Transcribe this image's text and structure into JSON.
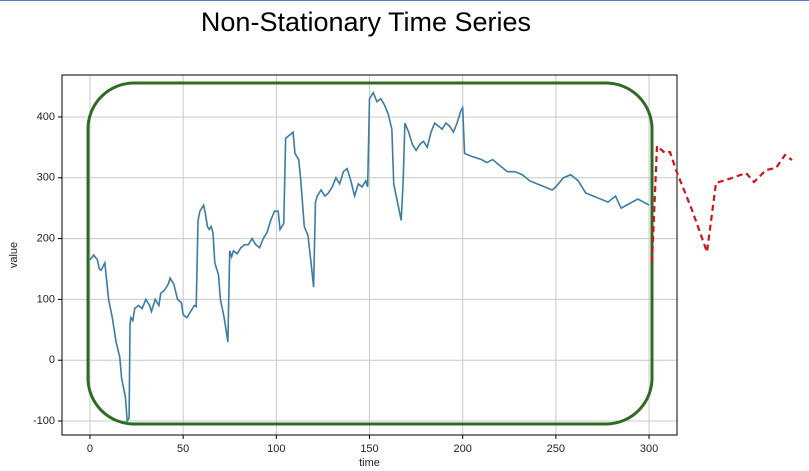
{
  "chart_data": {
    "type": "line",
    "title": "Non-Stationary Time Series",
    "x_label": "time",
    "y_label": "value",
    "xlim": [
      -15,
      315
    ],
    "ylim": [
      -123,
      469
    ],
    "xticks": [
      0,
      50,
      100,
      150,
      200,
      250,
      300
    ],
    "yticks": [
      -100,
      0,
      100,
      200,
      300,
      400
    ],
    "grid": true,
    "x": [
      0,
      2,
      4,
      5,
      6,
      8,
      9,
      10,
      12,
      14,
      16,
      17,
      19,
      20,
      21,
      21.5,
      22,
      23,
      24,
      26,
      28,
      30,
      31,
      32,
      33,
      35,
      37,
      38,
      40,
      42,
      43,
      45,
      47,
      49,
      50,
      52,
      54,
      56,
      57,
      58,
      59,
      60,
      61,
      62,
      63,
      64,
      65,
      66,
      67,
      69,
      70,
      72,
      73,
      74,
      75,
      76,
      77,
      79,
      81,
      83,
      85,
      87,
      89,
      91,
      93,
      95,
      97,
      99,
      101,
      102,
      104,
      105,
      107,
      109,
      110,
      112,
      113,
      115,
      117,
      119,
      120,
      121,
      122,
      124,
      126,
      128,
      130,
      132,
      134,
      136,
      138,
      140,
      142,
      144,
      146,
      148,
      149,
      150,
      152,
      154,
      156,
      158,
      160,
      162,
      163,
      165,
      167,
      168,
      169,
      171,
      173,
      175,
      177,
      179,
      181,
      183,
      185,
      187,
      189,
      191,
      193,
      195,
      197,
      199,
      200,
      201,
      205,
      210,
      213,
      216,
      220,
      224,
      228,
      232,
      236,
      240,
      244,
      248,
      250,
      254,
      258,
      262,
      266,
      270,
      274,
      278,
      282,
      285,
      288,
      291,
      294,
      297,
      300
    ],
    "series": [
      {
        "color": "#3a7ca5",
        "values": [
          165,
          173,
          165,
          150,
          148,
          160,
          130,
          100,
          70,
          30,
          5,
          -30,
          -60,
          -100,
          -95,
          60,
          70,
          65,
          85,
          90,
          85,
          100,
          95,
          90,
          80,
          100,
          90,
          110,
          115,
          125,
          135,
          125,
          100,
          95,
          75,
          70,
          80,
          90,
          88,
          230,
          245,
          250,
          255,
          240,
          220,
          215,
          220,
          210,
          160,
          140,
          100,
          70,
          50,
          30,
          180,
          170,
          180,
          175,
          185,
          190,
          190,
          200,
          190,
          185,
          200,
          210,
          230,
          245,
          245,
          215,
          225,
          365,
          370,
          375,
          340,
          330,
          300,
          220,
          205,
          150,
          120,
          260,
          270,
          280,
          270,
          275,
          285,
          300,
          290,
          310,
          315,
          295,
          270,
          290,
          285,
          295,
          285,
          430,
          440,
          425,
          430,
          420,
          405,
          380,
          290,
          260,
          230,
          290,
          390,
          375,
          355,
          345,
          355,
          360,
          350,
          375,
          390,
          385,
          380,
          390,
          385,
          375,
          390,
          410,
          415,
          340,
          335,
          330,
          325,
          330,
          320,
          310,
          310,
          305,
          295,
          290,
          285,
          280,
          285,
          300,
          305,
          295,
          275,
          270,
          265,
          260,
          270,
          250,
          255,
          260,
          265,
          260,
          255
        ]
      }
    ]
  }
}
